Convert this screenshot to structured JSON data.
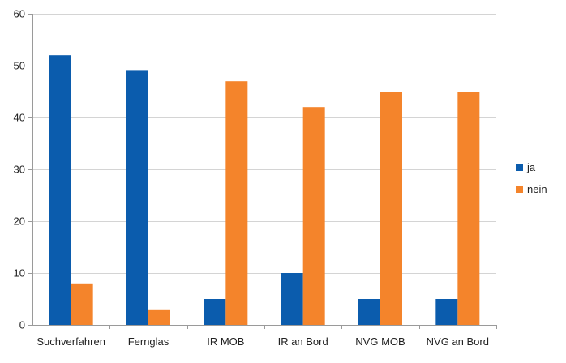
{
  "chart_data": {
    "type": "bar",
    "categories": [
      "Suchverfahren",
      "Fernglas",
      "IR MOB",
      "IR an Bord",
      "NVG MOB",
      "NVG an Bord"
    ],
    "series": [
      {
        "name": "ja",
        "values": [
          52,
          49,
          5,
          10,
          5,
          5
        ],
        "color": "#0B5CAD"
      },
      {
        "name": "nein",
        "values": [
          8,
          3,
          47,
          42,
          45,
          45
        ],
        "color": "#F4842B"
      }
    ],
    "ylim": [
      0,
      60
    ],
    "yticks": [
      0,
      10,
      20,
      30,
      40,
      50,
      60
    ],
    "grid": true,
    "legend": "right",
    "xlabel": "",
    "ylabel": "",
    "title": ""
  }
}
